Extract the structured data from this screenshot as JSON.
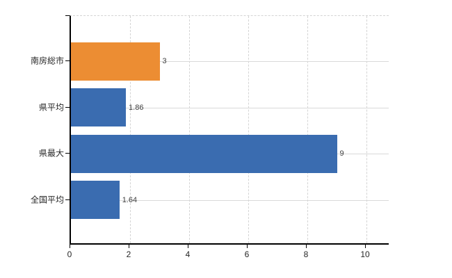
{
  "chart_data": {
    "type": "bar",
    "orientation": "horizontal",
    "title": "",
    "xlabel": "",
    "ylabel": "",
    "categories": [
      "南房総市",
      "県平均",
      "県最大",
      "全国平均"
    ],
    "values": [
      3,
      1.86,
      9,
      1.64
    ],
    "value_labels": [
      "3",
      "1.86",
      "9",
      "1.64"
    ],
    "bar_colors": [
      "#EC8D33",
      "#3A6CB0",
      "#3A6CB0",
      "#3A6CB0"
    ],
    "x_ticks": [
      0,
      2,
      4,
      6,
      8,
      10
    ],
    "x_tick_labels": [
      "0",
      "2",
      "4",
      "6",
      "8",
      "10"
    ],
    "xlim": [
      0,
      10.8
    ],
    "grid": true,
    "legend": false,
    "colors": {
      "axis": "#000000",
      "gridline": "#d9d9d9",
      "value_label_text": "#404040",
      "tick_label_text": "#262626",
      "background": "#ffffff"
    }
  }
}
